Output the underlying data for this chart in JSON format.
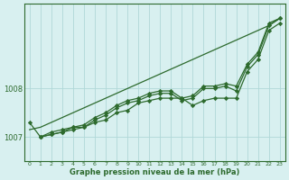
{
  "x": [
    0,
    1,
    2,
    3,
    4,
    5,
    6,
    7,
    8,
    9,
    10,
    11,
    12,
    13,
    14,
    15,
    16,
    17,
    18,
    19,
    20,
    21,
    22,
    23
  ],
  "line_straight": [
    1007.15,
    1007.2,
    1007.3,
    1007.4,
    1007.5,
    1007.6,
    1007.7,
    1007.8,
    1007.9,
    1008.0,
    1008.1,
    1008.2,
    1008.3,
    1008.4,
    1008.5,
    1008.6,
    1008.7,
    1008.8,
    1008.9,
    1009.0,
    1009.1,
    1009.2,
    1009.3,
    1009.45
  ],
  "line1": [
    1007.3,
    1007.0,
    1007.1,
    1007.15,
    1007.2,
    1007.2,
    1007.3,
    1007.35,
    1007.5,
    1007.55,
    1007.7,
    1007.75,
    1007.8,
    1007.8,
    1007.8,
    1007.65,
    1007.75,
    1007.8,
    1007.8,
    1007.8,
    1008.35,
    1008.6,
    1009.2,
    1009.35
  ],
  "line2": [
    null,
    1007.0,
    1007.05,
    1007.1,
    1007.15,
    1007.2,
    1007.35,
    1007.45,
    1007.6,
    1007.7,
    1007.75,
    1007.85,
    1007.9,
    1007.9,
    1007.75,
    1007.8,
    1008.0,
    1008.0,
    1008.05,
    1007.95,
    1008.45,
    1008.7,
    1009.3,
    1009.45
  ],
  "line3": [
    null,
    1007.0,
    1007.05,
    1007.1,
    1007.2,
    1007.25,
    1007.4,
    1007.5,
    1007.65,
    1007.75,
    1007.8,
    1007.9,
    1007.95,
    1007.95,
    1007.8,
    1007.85,
    1008.05,
    1008.05,
    1008.1,
    1008.05,
    1008.5,
    1008.75,
    1009.35,
    1009.45
  ],
  "line_color": "#2d6a2d",
  "bg_color": "#d8f0f0",
  "grid_color": "#b0d8d8",
  "xlabel": "Graphe pression niveau de la mer (hPa)",
  "ylim": [
    1006.5,
    1009.75
  ],
  "yticks": [
    1007,
    1008
  ],
  "xticks": [
    0,
    1,
    2,
    3,
    4,
    5,
    6,
    7,
    8,
    9,
    10,
    11,
    12,
    13,
    14,
    15,
    16,
    17,
    18,
    19,
    20,
    21,
    22,
    23
  ],
  "marker": "D",
  "markersize": 2.2,
  "linewidth": 0.9
}
